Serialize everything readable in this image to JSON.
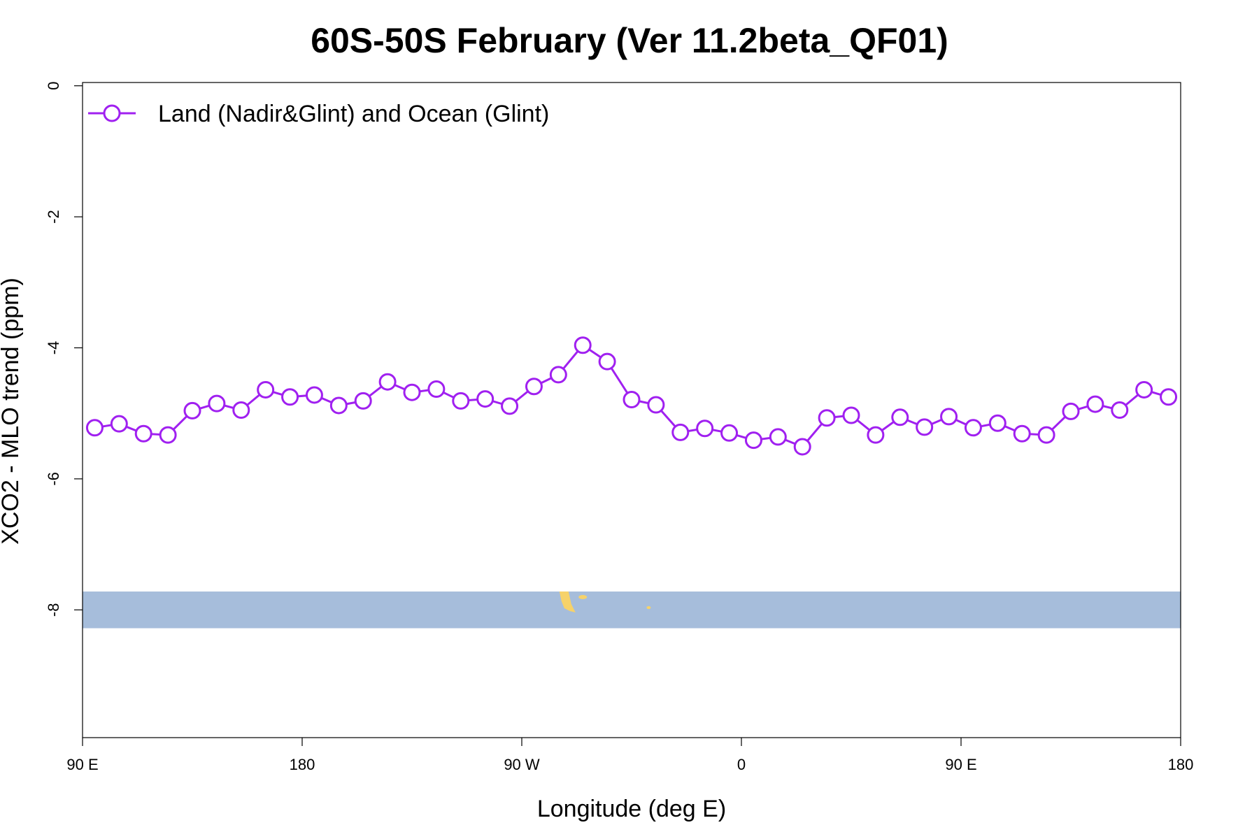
{
  "chart_data": {
    "type": "line",
    "title": "60S-50S February (Ver 11.2beta_QF01)",
    "xlabel": "Longitude (deg E)",
    "ylabel": "XCO2 - MLO trend (ppm)",
    "x_ticks": [
      {
        "value": 90,
        "label": "90 E"
      },
      {
        "value": 180,
        "label": "180"
      },
      {
        "value": 270,
        "label": "90 W"
      },
      {
        "value": 360,
        "label": "0"
      },
      {
        "value": 450,
        "label": "90 E"
      },
      {
        "value": 540,
        "label": "180"
      }
    ],
    "y_ticks": [
      {
        "value": 0,
        "label": "0"
      },
      {
        "value": -2,
        "label": "-2"
      },
      {
        "value": -4,
        "label": "-4"
      },
      {
        "value": -6,
        "label": "-6"
      },
      {
        "value": -8,
        "label": "-8"
      }
    ],
    "xlim": [
      90,
      540
    ],
    "ylim": [
      -9.95,
      0.05
    ],
    "legend_position": "top-left",
    "series": [
      {
        "name": "Land (Nadir&Glint) and Ocean (Glint)",
        "color": "#a020f0",
        "marker": "open-circle",
        "x": [
          95,
          105,
          115,
          125,
          135,
          145,
          155,
          165,
          175,
          185,
          195,
          205,
          215,
          225,
          235,
          245,
          255,
          265,
          275,
          285,
          295,
          305,
          315,
          325,
          335,
          345,
          355,
          365,
          375,
          385,
          395,
          405,
          415,
          425,
          435,
          445,
          455,
          465,
          475,
          485,
          495,
          505,
          515,
          525,
          535
        ],
        "y": [
          -5.22,
          -5.16,
          -5.31,
          -5.33,
          -4.96,
          -4.85,
          -4.95,
          -4.64,
          -4.75,
          -4.72,
          -4.88,
          -4.81,
          -4.52,
          -4.68,
          -4.63,
          -4.81,
          -4.78,
          -4.89,
          -4.59,
          -4.41,
          -3.96,
          -4.21,
          -4.79,
          -4.87,
          -5.29,
          -5.23,
          -5.3,
          -5.41,
          -5.36,
          -5.51,
          -5.07,
          -5.03,
          -5.33,
          -5.06,
          -5.21,
          -5.05,
          -5.22,
          -5.15,
          -5.31,
          -5.33,
          -4.97,
          -4.86,
          -4.95,
          -4.64,
          -4.75
        ]
      }
    ],
    "background_band": {
      "y_range": [
        -8.28,
        -7.72
      ],
      "ocean_color": "#a6bddb",
      "land_color": "#f6d26a"
    }
  }
}
